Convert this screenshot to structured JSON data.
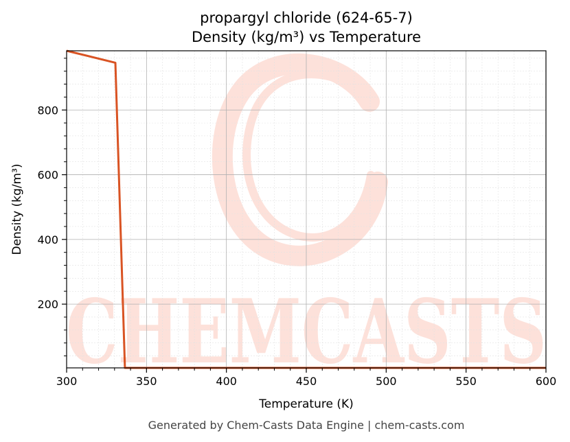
{
  "chart_data": {
    "type": "line",
    "title": "propargyl chloride (624-65-7)",
    "subtitle": "Density (kg/m³) vs Temperature",
    "xlabel": "Temperature (K)",
    "ylabel": "Density (kg/m³)",
    "xlim": [
      300,
      600
    ],
    "ylim": [
      3,
      983
    ],
    "x_ticks": [
      300,
      350,
      400,
      450,
      500,
      550,
      600
    ],
    "y_ticks": [
      200,
      400,
      600,
      800
    ],
    "grid": true,
    "series": [
      {
        "color": "#d95323",
        "x": [
          300,
          330.5,
          336.5,
          337,
          400,
          500,
          600
        ],
        "y": [
          983,
          946,
          3,
          3,
          3,
          3,
          3
        ]
      }
    ]
  },
  "watermark": {
    "text": "CHEMCASTS",
    "color": "#fde1da"
  },
  "footer": "Generated by Chem-Casts Data Engine | chem-casts.com"
}
